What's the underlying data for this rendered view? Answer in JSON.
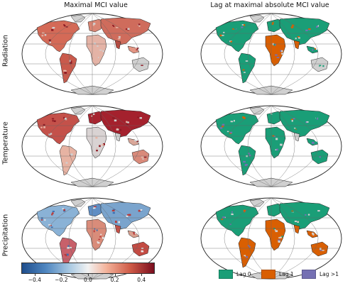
{
  "columns": {
    "left_title": "Maximal MCI value",
    "right_title": "Lag at maximal absolute MCI value"
  },
  "rows": [
    "Radiation",
    "Temperature",
    "Precipitation"
  ],
  "colorbar": {
    "ticks": [
      "−0.4",
      "−0.2",
      "0.0",
      "0.2",
      "0.4"
    ],
    "values": [
      -0.4,
      -0.2,
      0.0,
      0.2,
      0.4
    ],
    "range": [
      -0.5,
      0.5
    ],
    "colors": [
      "#1f4e8c",
      "#4f86c0",
      "#a9c9e2",
      "#f2f2f2",
      "#f3b29a",
      "#cf5b47",
      "#7a0d1e"
    ]
  },
  "legend": [
    {
      "label": "Lag 0",
      "color": "#1a9e77"
    },
    {
      "label": "Lag 1",
      "color": "#d95f02"
    },
    {
      "label": "Lag >1",
      "color": "#7570b3"
    }
  ],
  "colors": {
    "land_nodata": "#d0d0d0",
    "outline": "#222222",
    "graticule": "#666666"
  }
}
